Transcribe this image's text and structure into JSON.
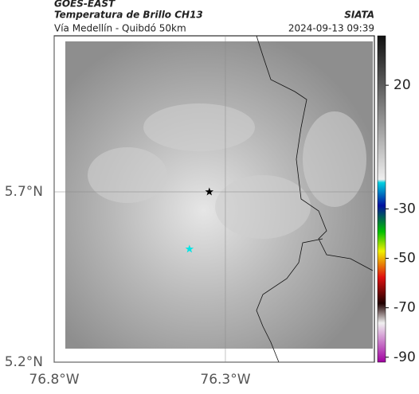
{
  "chart_data": {
    "type": "map",
    "title": "GOES-EAST",
    "subtitle": "Temperatura de Brillo CH13",
    "source": "SIATA",
    "region": "Vía Medellín - Quibdó 50km",
    "datetime": "2024-09-13 09:39",
    "xlim": [
      -76.8,
      -75.865
    ],
    "ylim": [
      5.2,
      6.158
    ],
    "xticks": [
      {
        "value": -76.8,
        "label": "76.8°W"
      },
      {
        "value": -76.3,
        "label": "76.3°W"
      }
    ],
    "yticks": [
      {
        "value": 5.2,
        "label": "5.2°N"
      },
      {
        "value": 5.7,
        "label": "5.7°N"
      }
    ],
    "grid": true,
    "markers": [
      {
        "x": -76.347,
        "y": 5.7,
        "color": "#000000"
      },
      {
        "x": -76.405,
        "y": 5.532,
        "color": "#00e5e5"
      }
    ],
    "clim": [
      -92,
      40
    ],
    "cticks": [
      20,
      -30,
      -50,
      -70,
      -90
    ]
  }
}
